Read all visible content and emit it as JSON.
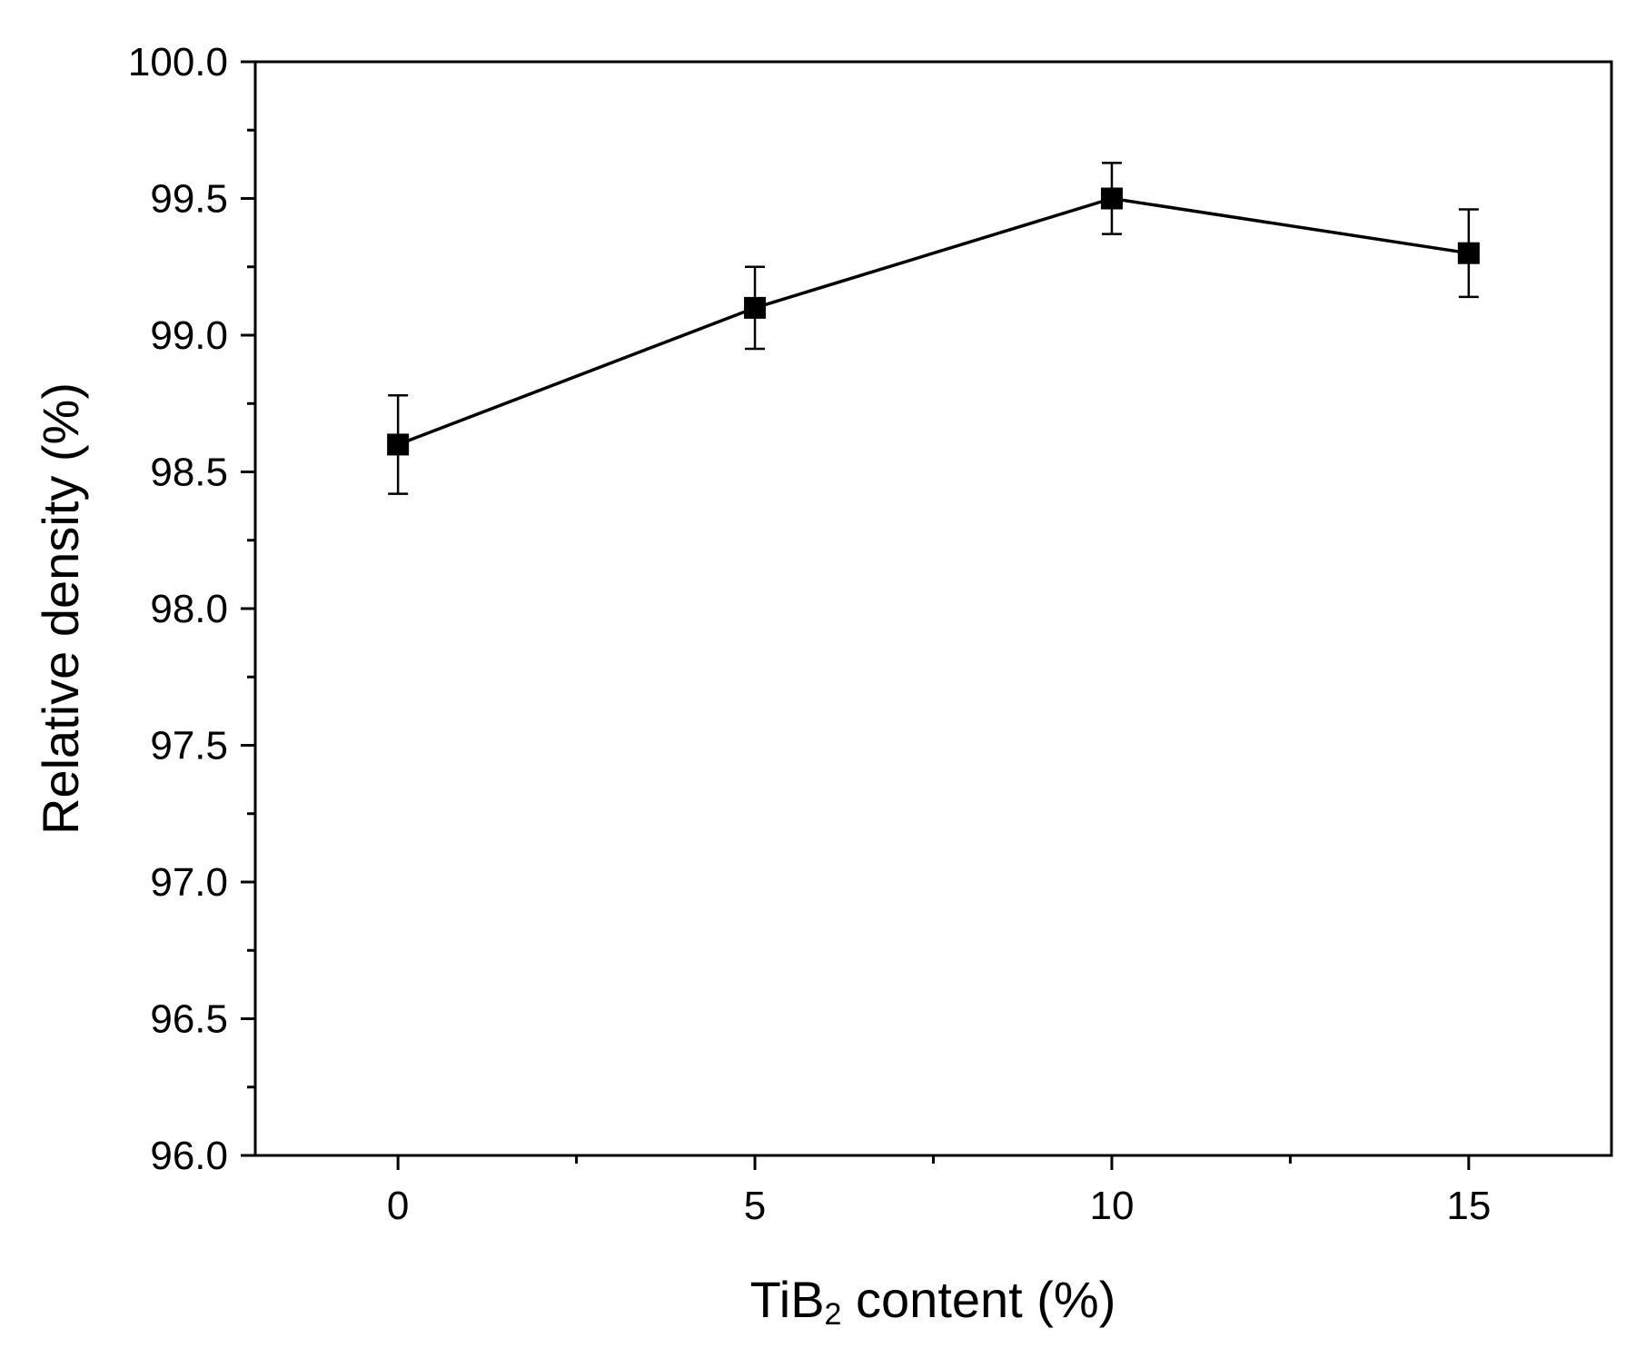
{
  "chart_data": {
    "type": "line",
    "title": "",
    "xlabel": "TiB₂ content (%)",
    "xlabel_parts": {
      "base": "TiB",
      "subscript": "2",
      "rest": " content (%)"
    },
    "ylabel": "Relative density (%)",
    "xlim": [
      -2,
      17
    ],
    "ylim": [
      96.0,
      100.0
    ],
    "xticks": [
      0,
      5,
      10,
      15
    ],
    "xtick_labels": [
      "0",
      "5",
      "10",
      "15"
    ],
    "xminor_ticks": [
      2.5,
      7.5,
      12.5
    ],
    "yticks": [
      96.0,
      96.5,
      97.0,
      97.5,
      98.0,
      98.5,
      99.0,
      99.5,
      100.0
    ],
    "ytick_labels": [
      "96.0",
      "96.5",
      "97.0",
      "97.5",
      "98.0",
      "98.5",
      "99.0",
      "99.5",
      "100.0"
    ],
    "yminor_ticks": [
      96.25,
      96.75,
      97.25,
      97.75,
      98.25,
      98.75,
      99.25,
      99.75
    ],
    "grid": false,
    "marker": "square",
    "color": "#000000",
    "series": [
      {
        "x": [
          0,
          5,
          10,
          15
        ],
        "y": [
          98.6,
          99.1,
          99.5,
          99.3
        ],
        "error": [
          0.18,
          0.15,
          0.13,
          0.16
        ]
      }
    ]
  }
}
